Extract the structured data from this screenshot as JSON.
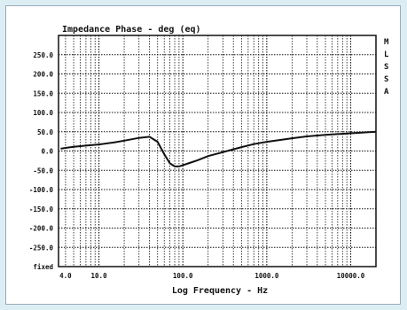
{
  "chart_data": {
    "type": "line",
    "title": "Impedance Phase - deg (eq)",
    "xlabel": "Log Frequency - Hz",
    "ylabel": "",
    "x_scale": "log",
    "xlim": [
      3.3,
      20000
    ],
    "ylim": [
      -300,
      300
    ],
    "x_tick_labels": [
      {
        "value": 4,
        "label": "4.0"
      },
      {
        "value": 10,
        "label": "10.0"
      },
      {
        "value": 100,
        "label": "100.0"
      },
      {
        "value": 1000,
        "label": "1000.0"
      },
      {
        "value": 10000,
        "label": "10000.0"
      }
    ],
    "y_tick_labels": [
      {
        "value": 250,
        "label": "250.0"
      },
      {
        "value": 200,
        "label": "200.0"
      },
      {
        "value": 150,
        "label": "150.0"
      },
      {
        "value": 100,
        "label": "100.0"
      },
      {
        "value": 50,
        "label": "50.0"
      },
      {
        "value": 0,
        "label": "0.0"
      },
      {
        "value": -50,
        "label": "-50.0"
      },
      {
        "value": -100,
        "label": "-100.0"
      },
      {
        "value": -150,
        "label": "-150.0"
      },
      {
        "value": -200,
        "label": "-200.0"
      },
      {
        "value": -250,
        "label": "-250.0"
      },
      {
        "value": -300,
        "label": "fixed"
      }
    ],
    "side_letters": [
      "M",
      "L",
      "S",
      "S",
      "A"
    ],
    "grid": true,
    "series": [
      {
        "x": [
          3.5,
          4,
          5,
          7,
          10,
          15,
          20,
          30,
          40,
          50,
          60,
          70,
          80,
          90,
          100,
          120,
          150,
          200,
          300,
          500,
          700,
          1000,
          2000,
          3000,
          5000,
          10000,
          20000
        ],
        "y": [
          6,
          8,
          11,
          14,
          17,
          22,
          27,
          34,
          37,
          24,
          -8,
          -32,
          -40,
          -40,
          -37,
          -31,
          -24,
          -13,
          -3,
          10,
          18,
          24,
          33,
          38,
          42,
          46,
          50
        ]
      }
    ],
    "colors": {
      "grid": "#111111",
      "line": "#111111",
      "axis": "#111111"
    }
  }
}
